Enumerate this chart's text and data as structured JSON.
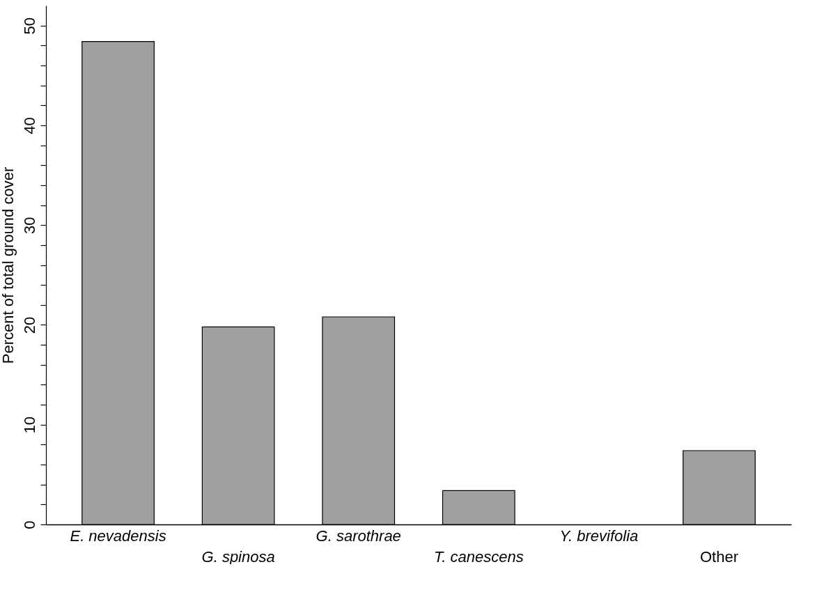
{
  "chart_data": {
    "type": "bar",
    "ylabel": "Percent of total ground cover",
    "categories": [
      "E. nevadensis",
      "G. spinosa",
      "G. sarothrae",
      "T. canescens",
      "Y. brevifolia",
      "Other"
    ],
    "values": [
      48.4,
      19.8,
      20.8,
      3.4,
      null,
      7.4
    ],
    "color": "#a0a0a0",
    "ylim": [
      0,
      52
    ],
    "yticks": [
      0,
      {
        "value": 2,
        "label": null
      },
      {
        "value": 4,
        "label": null
      },
      {
        "value": 6,
        "label": null
      },
      {
        "value": 8,
        "label": null
      },
      10,
      {
        "value": 12,
        "label": null
      },
      {
        "value": 14,
        "label": null
      },
      {
        "value": 16,
        "label": null
      },
      {
        "value": 18,
        "label": null
      },
      20,
      {
        "value": 22,
        "label": null
      },
      {
        "value": 24,
        "label": null
      },
      {
        "value": 26,
        "label": null
      },
      {
        "value": 28,
        "label": null
      },
      30,
      {
        "value": 32,
        "label": null
      },
      {
        "value": 34,
        "label": null
      },
      {
        "value": 36,
        "label": null
      },
      {
        "value": 38,
        "label": null
      },
      40,
      {
        "value": 42,
        "label": null
      },
      {
        "value": 44,
        "label": null
      },
      {
        "value": 46,
        "label": null
      },
      {
        "value": 48,
        "label": null
      },
      50
    ],
    "grid": false
  }
}
